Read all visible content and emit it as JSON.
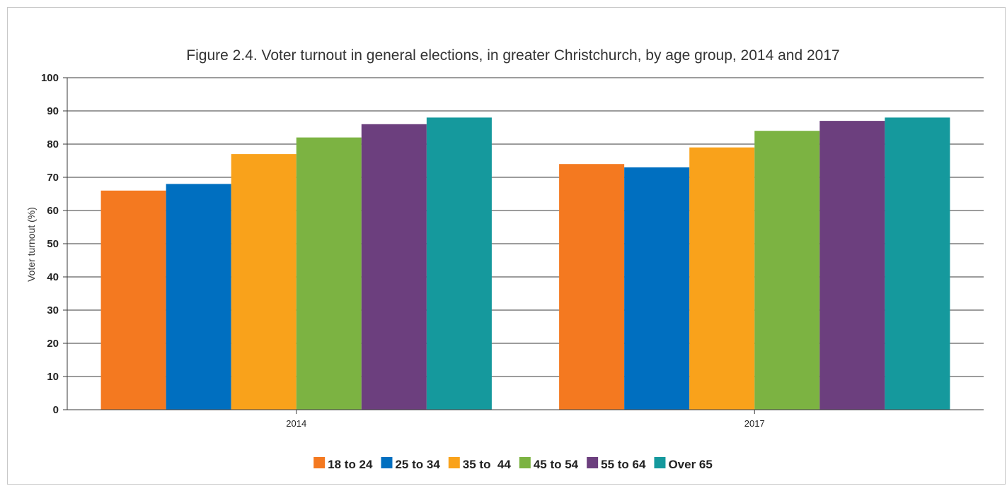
{
  "chart_data": {
    "type": "bar",
    "title": "Figure 2.4. Voter turnout in general elections, in greater Christchurch, by age group, 2014 and 2017",
    "xlabel": "",
    "ylabel": "Voter turnout (%)",
    "categories": [
      "2014",
      "2017"
    ],
    "ylim": [
      0,
      100
    ],
    "yticks": [
      0,
      10,
      20,
      30,
      40,
      50,
      60,
      70,
      80,
      90,
      100
    ],
    "grid": true,
    "legend_position": "bottom",
    "series": [
      {
        "name": "18 to 24",
        "color": "#f47920",
        "values": [
          66,
          74
        ]
      },
      {
        "name": "25 to 34",
        "color": "#006fc0",
        "values": [
          68,
          73
        ]
      },
      {
        "name": "35 to  44",
        "color": "#f9a21b",
        "values": [
          77,
          79
        ]
      },
      {
        "name": "45 to 54",
        "color": "#7cb342",
        "values": [
          82,
          84
        ]
      },
      {
        "name": "55 to 64",
        "color": "#6c3f7e",
        "values": [
          86,
          87
        ]
      },
      {
        "name": "Over 65",
        "color": "#15999d",
        "values": [
          88,
          88
        ]
      }
    ]
  }
}
